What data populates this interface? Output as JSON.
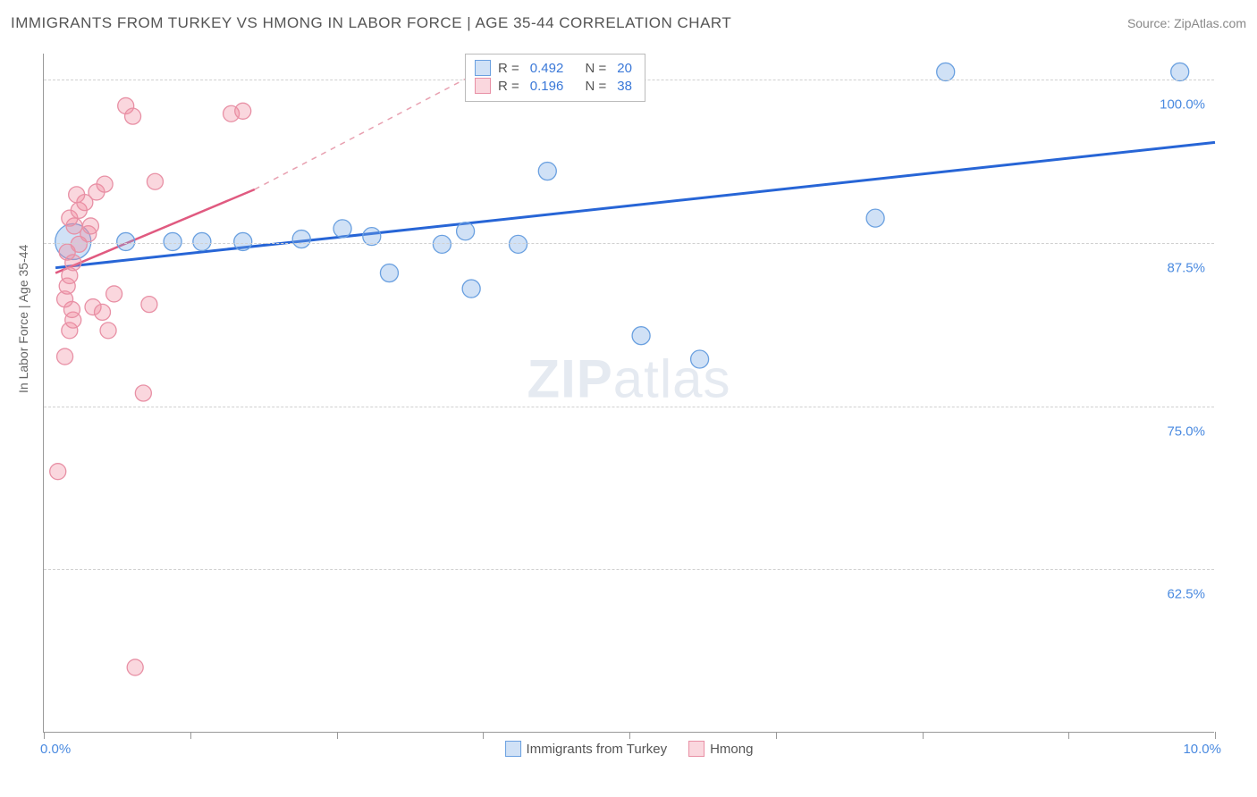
{
  "title": "IMMIGRANTS FROM TURKEY VS HMONG IN LABOR FORCE | AGE 35-44 CORRELATION CHART",
  "source": "Source: ZipAtlas.com",
  "ylabel": "In Labor Force | Age 35-44",
  "watermark_a": "ZIP",
  "watermark_b": "atlas",
  "chart": {
    "type": "scatter",
    "xlim": [
      0,
      10
    ],
    "ylim": [
      50,
      102
    ],
    "x_ticks": [
      0,
      1.25,
      2.5,
      3.75,
      5,
      6.25,
      7.5,
      8.75,
      10
    ],
    "y_ticks": [
      62.5,
      75,
      87.5,
      100
    ],
    "x_tick_labels_shown": {
      "0": "0.0%",
      "10": "10.0%"
    },
    "y_tick_labels": {
      "62.5": "62.5%",
      "75": "75.0%",
      "87.5": "87.5%",
      "100": "100.0%"
    },
    "background_color": "#ffffff",
    "grid_color": "#d0d0d0",
    "series": [
      {
        "name": "Immigrants from Turkey",
        "color_fill": "rgba(120,170,230,0.35)",
        "color_stroke": "#6aa0e0",
        "marker_r": 10,
        "points": [
          [
            0.25,
            87.6,
            20
          ],
          [
            0.7,
            87.6
          ],
          [
            1.1,
            87.6
          ],
          [
            1.35,
            87.6
          ],
          [
            1.7,
            87.6
          ],
          [
            2.2,
            87.8
          ],
          [
            2.55,
            88.6
          ],
          [
            2.8,
            88.0
          ],
          [
            3.4,
            87.4
          ],
          [
            2.95,
            85.2
          ],
          [
            3.65,
            84.0
          ],
          [
            3.6,
            88.4
          ],
          [
            4.05,
            87.4
          ],
          [
            4.3,
            93.0
          ],
          [
            5.1,
            80.4
          ],
          [
            5.6,
            78.6
          ],
          [
            7.1,
            89.4
          ],
          [
            7.7,
            100.6
          ],
          [
            9.7,
            100.6
          ]
        ],
        "trend": {
          "color": "#2765d6",
          "width": 3,
          "x1": 0.1,
          "y1": 85.6,
          "x2": 10,
          "y2": 95.2
        }
      },
      {
        "name": "Hmong",
        "color_fill": "rgba(240,140,160,0.35)",
        "color_stroke": "#e890a5",
        "marker_r": 9,
        "points": [
          [
            0.12,
            70.0
          ],
          [
            0.18,
            78.8
          ],
          [
            0.22,
            80.8
          ],
          [
            0.25,
            81.6
          ],
          [
            0.24,
            82.4
          ],
          [
            0.18,
            83.2
          ],
          [
            0.2,
            84.2
          ],
          [
            0.22,
            85.0
          ],
          [
            0.25,
            86.0
          ],
          [
            0.2,
            86.8
          ],
          [
            0.3,
            87.4
          ],
          [
            0.38,
            88.2
          ],
          [
            0.26,
            88.8
          ],
          [
            0.4,
            88.8
          ],
          [
            0.22,
            89.4
          ],
          [
            0.3,
            90.0
          ],
          [
            0.35,
            90.6
          ],
          [
            0.28,
            91.2
          ],
          [
            0.45,
            91.4
          ],
          [
            0.52,
            92.0
          ],
          [
            0.42,
            82.6
          ],
          [
            0.5,
            82.2
          ],
          [
            0.55,
            80.8
          ],
          [
            0.6,
            83.6
          ],
          [
            0.7,
            98.0
          ],
          [
            0.76,
            97.2
          ],
          [
            0.78,
            55.0
          ],
          [
            0.85,
            76.0
          ],
          [
            0.9,
            82.8
          ],
          [
            0.95,
            92.2
          ],
          [
            1.6,
            97.4
          ],
          [
            1.7,
            97.6
          ]
        ],
        "trend": {
          "color": "#e05a80",
          "width": 2.5,
          "x1": 0.1,
          "y1": 85.2,
          "x2": 1.8,
          "y2": 91.6
        },
        "trend_dash": {
          "color": "#e8a0b0",
          "x1": 1.8,
          "y1": 91.6,
          "x2": 3.8,
          "y2": 101
        }
      }
    ],
    "top_legend": [
      {
        "swatch": "blue",
        "r_label": "R =",
        "r": "0.492",
        "n_label": "N =",
        "n": "20"
      },
      {
        "swatch": "pink",
        "r_label": "R =",
        "r": "0.196",
        "n_label": "N =",
        "n": "38"
      }
    ],
    "bottom_legend": [
      {
        "swatch": "blue",
        "label": "Immigrants from Turkey"
      },
      {
        "swatch": "pink",
        "label": "Hmong"
      }
    ]
  }
}
